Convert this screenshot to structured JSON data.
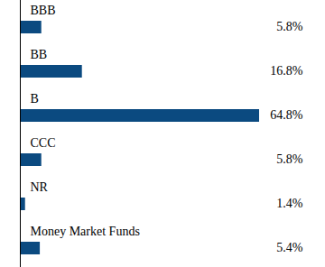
{
  "chart_data": {
    "type": "bar",
    "orientation": "horizontal",
    "categories": [
      "BBB",
      "BB",
      "B",
      "CCC",
      "NR",
      "Money Market Funds"
    ],
    "values": [
      5.8,
      16.8,
      64.8,
      5.8,
      1.4,
      5.4
    ],
    "value_labels": [
      "5.8%",
      "16.8%",
      "64.8%",
      "5.8%",
      "1.4%",
      "5.4%"
    ],
    "color": "#0b4a80",
    "data_labels": true
  }
}
